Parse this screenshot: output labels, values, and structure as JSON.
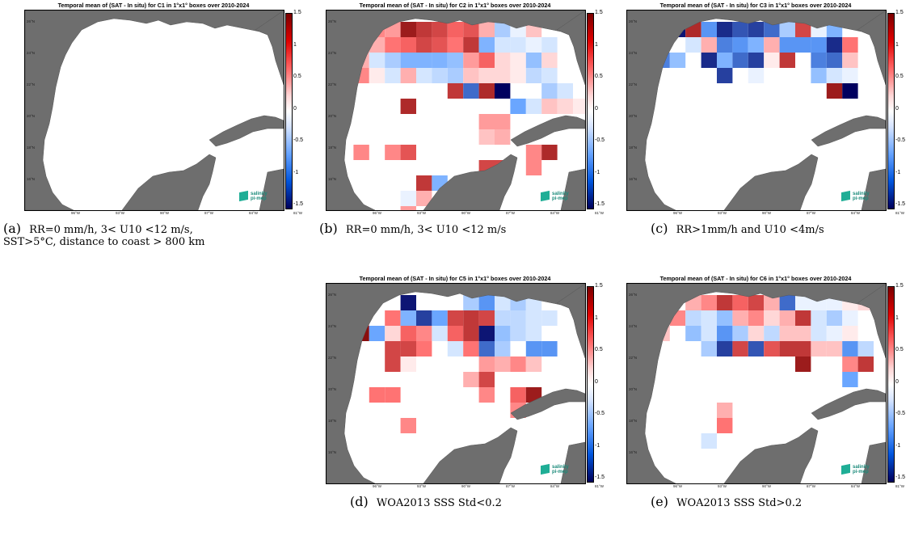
{
  "panels": [
    {
      "id": "a",
      "title": "Temporal mean of (SAT - In situ) for C1 in 1°x1° boxes over 2010-2024",
      "caption_label": "(a)",
      "caption_text": "RR=0 mm/h, 3< U10 <12 m/s,",
      "caption_text2": "SST>5°C, distance to coast > 800 km",
      "cells": []
    },
    {
      "id": "b",
      "title": "Temporal mean of (SAT - In situ) for C2 in 1°x1° boxes over 2010-2024",
      "caption_label": "(b)",
      "caption_text": "RR=0 mm/h, 3< U10 <12 m/s",
      "cells": [
        [
          2,
          0,
          0.6
        ],
        [
          3,
          0,
          0.5
        ],
        [
          4,
          0,
          1.3
        ],
        [
          5,
          0,
          1.1
        ],
        [
          6,
          0,
          1.0
        ],
        [
          7,
          0,
          0.8
        ],
        [
          8,
          0,
          0.9
        ],
        [
          9,
          0,
          0.4
        ],
        [
          10,
          0,
          -0.4
        ],
        [
          11,
          0,
          -0.1
        ],
        [
          12,
          0,
          0.3
        ],
        [
          1,
          1,
          0.3
        ],
        [
          2,
          1,
          0.4
        ],
        [
          3,
          1,
          0.7
        ],
        [
          4,
          1,
          0.8
        ],
        [
          5,
          1,
          1.0
        ],
        [
          6,
          1,
          0.9
        ],
        [
          7,
          1,
          0.7
        ],
        [
          8,
          1,
          1.1
        ],
        [
          9,
          1,
          -0.6
        ],
        [
          10,
          1,
          -0.2
        ],
        [
          11,
          1,
          -0.2
        ],
        [
          12,
          1,
          -0.1
        ],
        [
          13,
          1,
          -0.2
        ],
        [
          1,
          2,
          0.4
        ],
        [
          2,
          2,
          -0.2
        ],
        [
          3,
          2,
          -0.4
        ],
        [
          4,
          2,
          -0.6
        ],
        [
          5,
          2,
          -0.6
        ],
        [
          6,
          2,
          -0.6
        ],
        [
          7,
          2,
          -0.5
        ],
        [
          8,
          2,
          0.5
        ],
        [
          9,
          2,
          0.8
        ],
        [
          10,
          2,
          0.2
        ],
        [
          11,
          2,
          0.1
        ],
        [
          12,
          2,
          -0.5
        ],
        [
          13,
          2,
          0.2
        ],
        [
          1,
          3,
          0.6
        ],
        [
          2,
          3,
          0.1
        ],
        [
          3,
          3,
          -0.2
        ],
        [
          4,
          3,
          0.4
        ],
        [
          5,
          3,
          -0.2
        ],
        [
          6,
          3,
          -0.3
        ],
        [
          7,
          3,
          -0.4
        ],
        [
          8,
          3,
          0.3
        ],
        [
          9,
          3,
          0.2
        ],
        [
          10,
          3,
          0.2
        ],
        [
          11,
          3,
          0.1
        ],
        [
          12,
          3,
          -0.3
        ],
        [
          13,
          3,
          -0.2
        ],
        [
          7,
          4,
          1.1
        ],
        [
          8,
          4,
          -1.0
        ],
        [
          9,
          4,
          1.2
        ],
        [
          10,
          4,
          -1.5
        ],
        [
          13,
          4,
          -0.4
        ],
        [
          14,
          4,
          -0.2
        ],
        [
          4,
          5,
          1.2
        ],
        [
          11,
          5,
          -0.7
        ],
        [
          12,
          5,
          -0.2
        ],
        [
          13,
          5,
          0.3
        ],
        [
          14,
          5,
          0.2
        ],
        [
          15,
          5,
          0.1
        ],
        [
          9,
          6,
          0.5
        ],
        [
          10,
          6,
          0.5
        ],
        [
          9,
          7,
          0.3
        ],
        [
          10,
          7,
          0.4
        ],
        [
          1,
          8,
          0.6
        ],
        [
          3,
          8,
          0.6
        ],
        [
          4,
          8,
          0.9
        ],
        [
          12,
          8,
          0.6
        ],
        [
          13,
          8,
          1.2
        ],
        [
          9,
          9,
          1.0
        ],
        [
          10,
          9,
          1.0
        ],
        [
          12,
          9,
          0.6
        ],
        [
          5,
          10,
          1.1
        ],
        [
          6,
          10,
          -0.6
        ],
        [
          4,
          11,
          -0.1
        ],
        [
          5,
          11,
          0.4
        ],
        [
          4,
          12,
          0.5
        ]
      ]
    },
    {
      "id": "c",
      "title": "Temporal mean of (SAT - In situ) for C3 in 1°x1° boxes over 2010-2024",
      "caption_label": "(c)",
      "caption_text": "RR>1mm/h and U10 <4m/s",
      "cells": [
        [
          2,
          0,
          -1.4
        ],
        [
          3,
          0,
          1.2
        ],
        [
          4,
          0,
          -0.8
        ],
        [
          5,
          0,
          -1.3
        ],
        [
          6,
          0,
          -1.1
        ],
        [
          7,
          0,
          -1.2
        ],
        [
          8,
          0,
          -1.0
        ],
        [
          9,
          0,
          -0.4
        ],
        [
          10,
          0,
          1.0
        ],
        [
          11,
          0,
          -0.1
        ],
        [
          12,
          0,
          -0.6
        ],
        [
          3,
          1,
          -0.2
        ],
        [
          4,
          1,
          0.4
        ],
        [
          5,
          1,
          -0.9
        ],
        [
          6,
          1,
          -0.8
        ],
        [
          7,
          1,
          -0.6
        ],
        [
          8,
          1,
          0.4
        ],
        [
          9,
          1,
          -0.8
        ],
        [
          10,
          1,
          -0.8
        ],
        [
          11,
          1,
          -0.8
        ],
        [
          12,
          1,
          -1.3
        ],
        [
          13,
          1,
          0.7
        ],
        [
          1,
          2,
          -0.9
        ],
        [
          2,
          2,
          -0.5
        ],
        [
          4,
          2,
          -1.3
        ],
        [
          5,
          2,
          -0.6
        ],
        [
          6,
          2,
          -1.0
        ],
        [
          7,
          2,
          -1.2
        ],
        [
          8,
          2,
          0.1
        ],
        [
          9,
          2,
          1.1
        ],
        [
          11,
          2,
          -0.9
        ],
        [
          12,
          2,
          -1.0
        ],
        [
          13,
          2,
          0.3
        ],
        [
          5,
          3,
          -1.2
        ],
        [
          7,
          3,
          -0.1
        ],
        [
          11,
          3,
          -0.5
        ],
        [
          12,
          3,
          -0.2
        ],
        [
          13,
          3,
          -0.1
        ],
        [
          12,
          4,
          1.3
        ],
        [
          13,
          4,
          -1.5
        ]
      ]
    },
    {
      "id": "d",
      "title": "Temporal mean of (SAT - In situ) for C5 in 1°x1° boxes over 2010-2024",
      "caption_label": "(d)",
      "caption_text": "WOA2013 SSS Std<0.2",
      "cells": [
        [
          4,
          0,
          -1.4
        ],
        [
          8,
          0,
          -0.4
        ],
        [
          9,
          0,
          -0.8
        ],
        [
          10,
          0,
          -0.2
        ],
        [
          11,
          0,
          -0.4
        ],
        [
          12,
          0,
          -0.2
        ],
        [
          1,
          1,
          0.6
        ],
        [
          3,
          1,
          0.7
        ],
        [
          4,
          1,
          -0.6
        ],
        [
          5,
          1,
          -1.2
        ],
        [
          6,
          1,
          -0.7
        ],
        [
          7,
          1,
          1.0
        ],
        [
          8,
          1,
          1.1
        ],
        [
          9,
          1,
          1.0
        ],
        [
          10,
          1,
          -0.3
        ],
        [
          11,
          1,
          -0.3
        ],
        [
          12,
          1,
          -0.2
        ],
        [
          13,
          1,
          -0.2
        ],
        [
          1,
          2,
          1.4
        ],
        [
          2,
          2,
          -0.7
        ],
        [
          3,
          2,
          0.2
        ],
        [
          4,
          2,
          0.8
        ],
        [
          5,
          2,
          0.6
        ],
        [
          6,
          2,
          -0.2
        ],
        [
          7,
          2,
          0.8
        ],
        [
          8,
          2,
          1.1
        ],
        [
          9,
          2,
          -1.4
        ],
        [
          10,
          2,
          -0.5
        ],
        [
          11,
          2,
          -0.3
        ],
        [
          12,
          2,
          -0.2
        ],
        [
          3,
          3,
          1.0
        ],
        [
          4,
          3,
          1.0
        ],
        [
          5,
          3,
          0.7
        ],
        [
          7,
          3,
          -0.2
        ],
        [
          8,
          3,
          0.7
        ],
        [
          9,
          3,
          -1.0
        ],
        [
          10,
          3,
          -0.4
        ],
        [
          12,
          3,
          -0.8
        ],
        [
          13,
          3,
          -0.8
        ],
        [
          3,
          4,
          1.0
        ],
        [
          4,
          4,
          0.1
        ],
        [
          9,
          4,
          0.5
        ],
        [
          10,
          4,
          0.4
        ],
        [
          11,
          4,
          0.6
        ],
        [
          12,
          4,
          0.3
        ],
        [
          8,
          5,
          0.4
        ],
        [
          9,
          5,
          1.0
        ],
        [
          2,
          6,
          0.7
        ],
        [
          3,
          6,
          0.7
        ],
        [
          9,
          6,
          0.6
        ],
        [
          11,
          6,
          0.8
        ],
        [
          12,
          6,
          1.3
        ],
        [
          11,
          7,
          0.6
        ],
        [
          4,
          8,
          0.6
        ]
      ]
    },
    {
      "id": "e",
      "title": "Temporal mean of (SAT - In situ) for C6 in 1°x1° boxes over 2010-2024",
      "caption_label": "(e)",
      "caption_text": "WOA2013 SSS Std>0.2",
      "cells": [
        [
          3,
          0,
          0.4
        ],
        [
          4,
          0,
          0.6
        ],
        [
          5,
          0,
          1.1
        ],
        [
          6,
          0,
          0.8
        ],
        [
          7,
          0,
          1.0
        ],
        [
          8,
          0,
          0.4
        ],
        [
          9,
          0,
          -1.0
        ],
        [
          10,
          0,
          -0.1
        ],
        [
          11,
          0,
          -0.1
        ],
        [
          12,
          0,
          -0.1
        ],
        [
          13,
          0,
          0.1
        ],
        [
          14,
          0,
          0.2
        ],
        [
          2,
          1,
          0.6
        ],
        [
          3,
          1,
          -0.3
        ],
        [
          4,
          1,
          -0.2
        ],
        [
          5,
          1,
          -0.5
        ],
        [
          6,
          1,
          0.4
        ],
        [
          7,
          1,
          0.6
        ],
        [
          8,
          1,
          0.2
        ],
        [
          9,
          1,
          0.4
        ],
        [
          10,
          1,
          1.1
        ],
        [
          11,
          1,
          -0.2
        ],
        [
          12,
          1,
          -0.4
        ],
        [
          13,
          1,
          -0.1
        ],
        [
          1,
          2,
          0.3
        ],
        [
          3,
          2,
          -0.5
        ],
        [
          4,
          2,
          -0.2
        ],
        [
          5,
          2,
          -0.8
        ],
        [
          6,
          2,
          -0.4
        ],
        [
          7,
          2,
          0.2
        ],
        [
          8,
          2,
          -0.3
        ],
        [
          9,
          2,
          0.3
        ],
        [
          10,
          2,
          0.3
        ],
        [
          11,
          2,
          -0.2
        ],
        [
          12,
          2,
          -0.1
        ],
        [
          13,
          2,
          0.1
        ],
        [
          4,
          3,
          -0.4
        ],
        [
          5,
          3,
          -1.2
        ],
        [
          6,
          3,
          1.0
        ],
        [
          7,
          3,
          -1.1
        ],
        [
          8,
          3,
          0.9
        ],
        [
          9,
          3,
          1.1
        ],
        [
          10,
          3,
          1.1
        ],
        [
          11,
          3,
          0.3
        ],
        [
          12,
          3,
          0.3
        ],
        [
          13,
          3,
          -0.8
        ],
        [
          14,
          3,
          -0.3
        ],
        [
          10,
          4,
          1.3
        ],
        [
          13,
          4,
          0.6
        ],
        [
          14,
          4,
          1.1
        ],
        [
          13,
          5,
          -0.7
        ],
        [
          5,
          7,
          0.4
        ],
        [
          5,
          8,
          0.7
        ],
        [
          4,
          9,
          -0.2
        ]
      ]
    }
  ],
  "colorbar_ticks": [
    "1.5",
    "1",
    "0.5",
    "0",
    "-0.5",
    "-1",
    "-1.5"
  ],
  "lon_ticks": [
    "96°W",
    "93°W",
    "90°W",
    "87°W",
    "84°W",
    "81°W"
  ],
  "lat_ticks": [
    "26°N",
    "24°N",
    "22°N",
    "20°N",
    "18°N",
    "16°N"
  ],
  "logo": {
    "line1": "salinity",
    "line2": "pi-mep"
  }
}
